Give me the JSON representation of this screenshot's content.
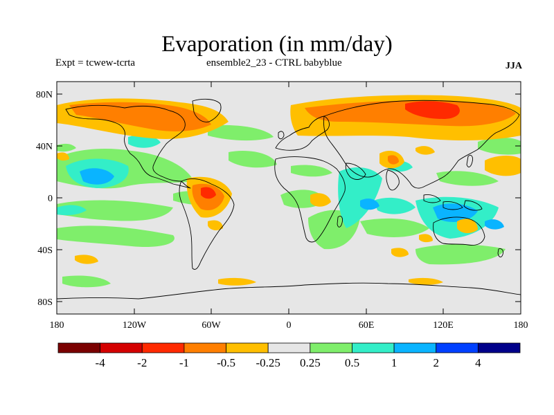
{
  "header": {
    "title": "Evaporation (in mm/day)",
    "left": "Expt = tcwew-tcrta",
    "center": "ensemble2_23 - CTRL babyblue",
    "right": "JJA"
  },
  "map": {
    "lat_ticks": [
      "80N",
      "40N",
      "0",
      "40S",
      "80S"
    ],
    "lon_ticks": [
      "180",
      "120W",
      "60W",
      "0",
      "60E",
      "120E",
      "180"
    ],
    "background_color": "#e6e6e6"
  },
  "colorbar": {
    "colors": [
      "#7a0000",
      "#d40000",
      "#ff2a00",
      "#ff7f00",
      "#ffbf00",
      "#e6e6e6",
      "#7fee6b",
      "#33eec8",
      "#0ab4ff",
      "#0040ff",
      "#00008a"
    ],
    "labels": [
      "-4",
      "-2",
      "-1",
      "-0.5",
      "-0.25",
      "0.25",
      "0.5",
      "1",
      "2",
      "4"
    ]
  }
}
